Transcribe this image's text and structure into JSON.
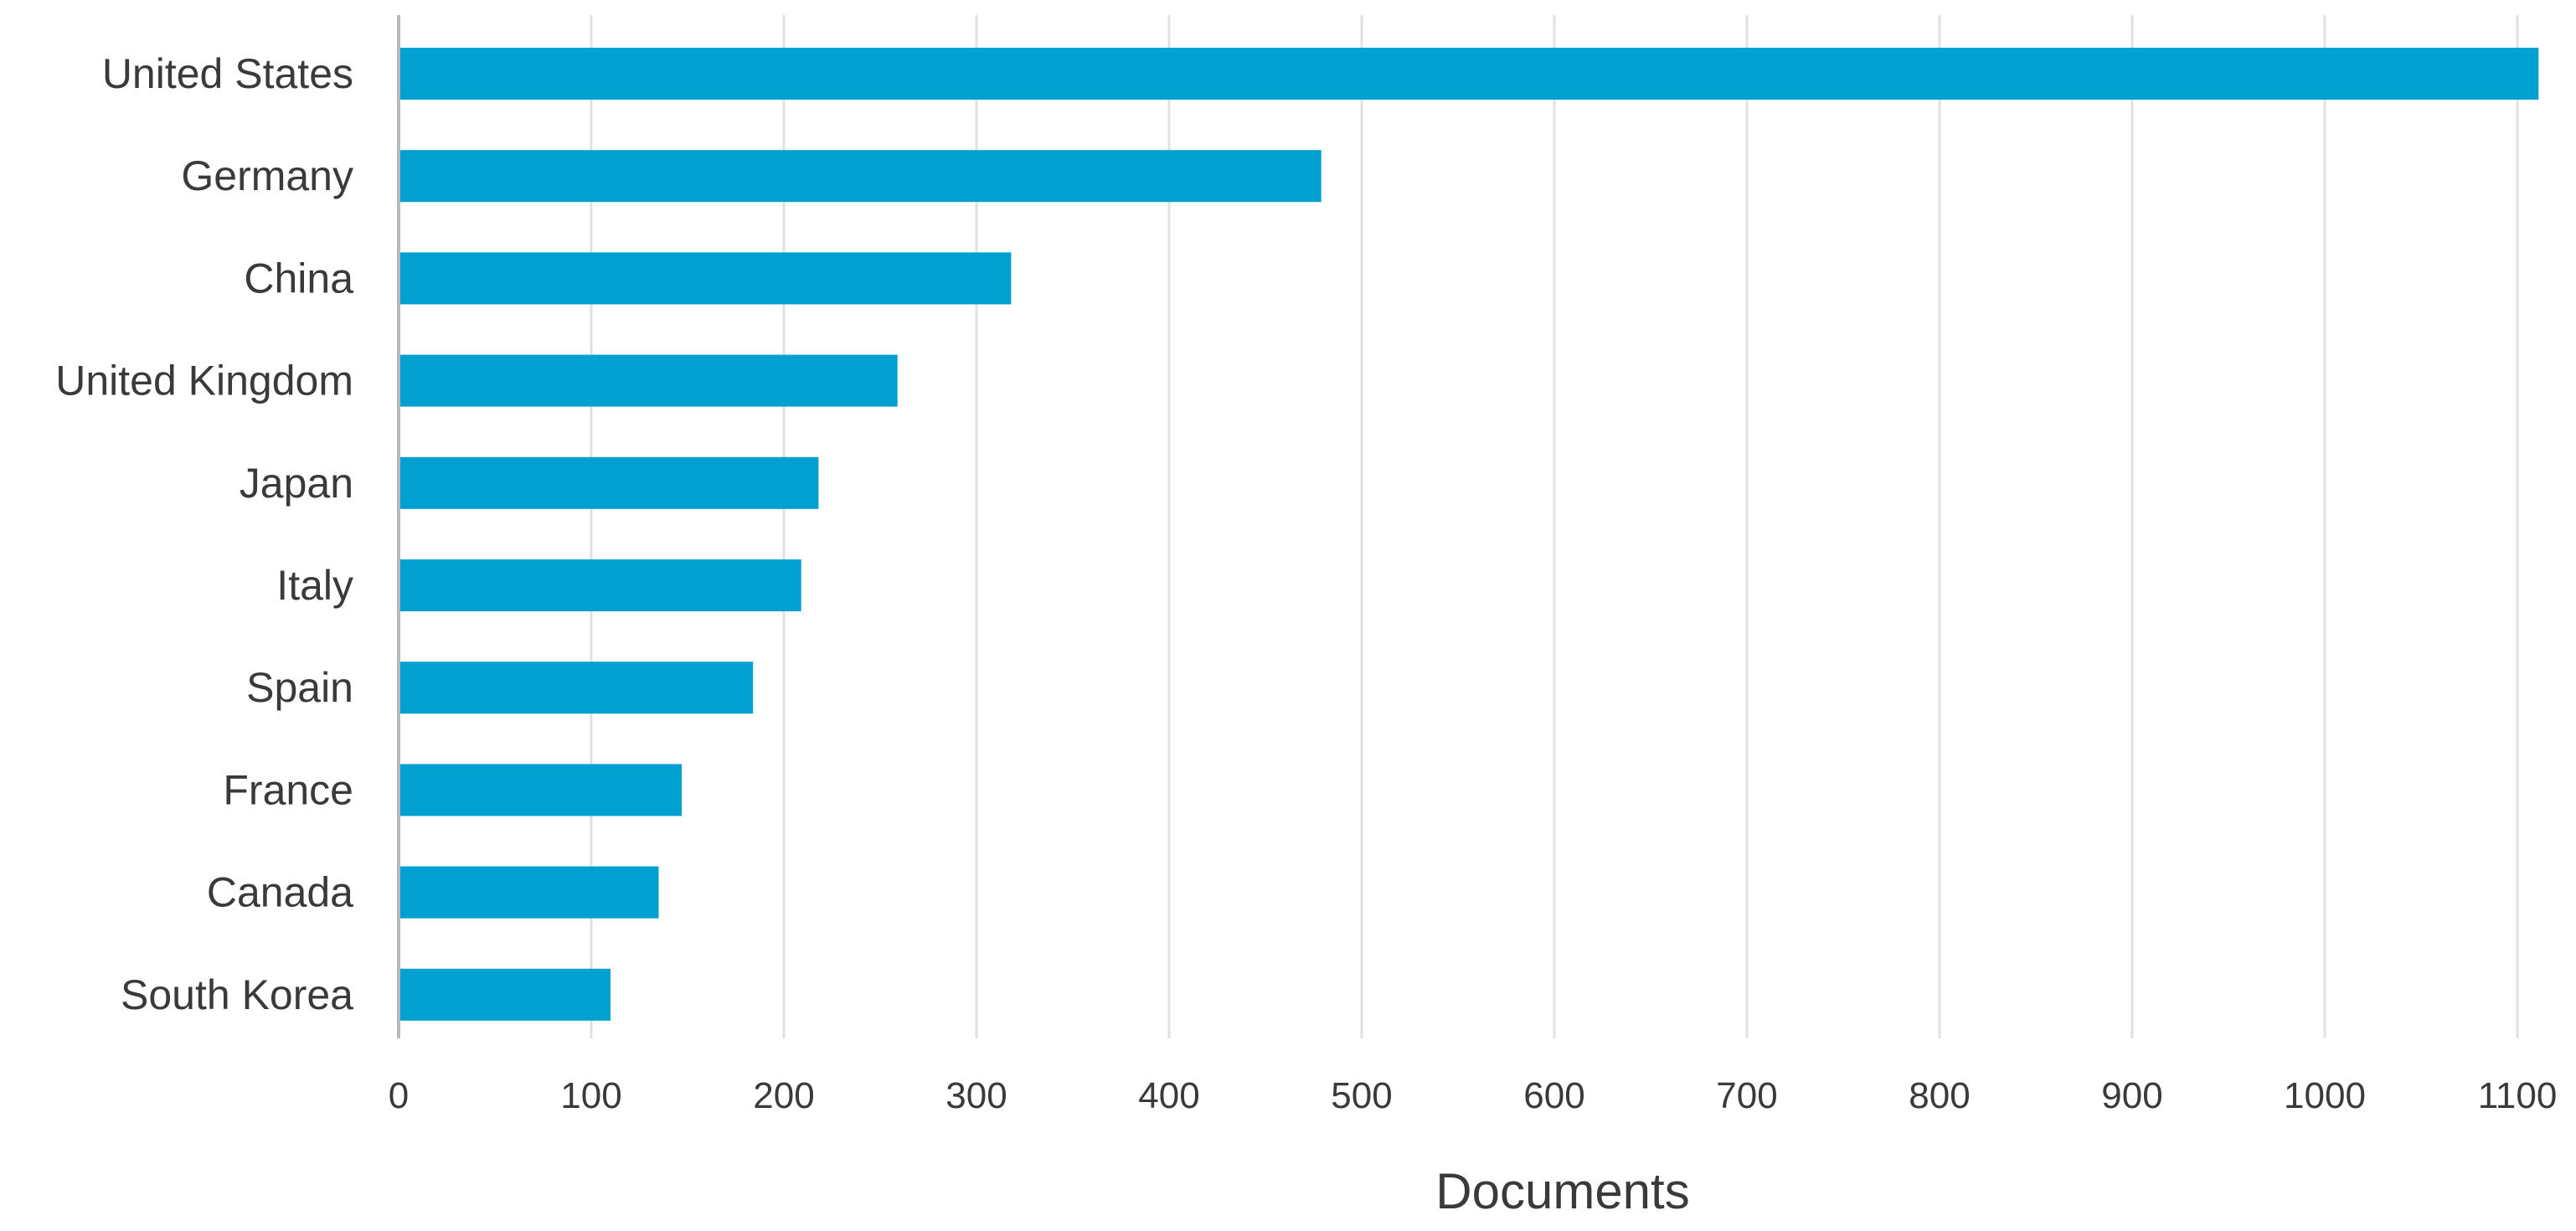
{
  "chart_data": {
    "type": "bar",
    "orientation": "horizontal",
    "categories": [
      "United States",
      "Germany",
      "China",
      "United Kingdom",
      "Japan",
      "Italy",
      "Spain",
      "France",
      "Canada",
      "South Korea"
    ],
    "values": [
      1111,
      479,
      318,
      259,
      218,
      209,
      184,
      147,
      135,
      110
    ],
    "xlabel": "Documents",
    "ylabel": "",
    "xlim": [
      0,
      1100
    ],
    "xticks": [
      "0",
      "100",
      "200",
      "300",
      "400",
      "500",
      "600",
      "700",
      "800",
      "900",
      "1000",
      "1100"
    ],
    "grid": "vertical",
    "colors": {
      "bar": "#00a0d0",
      "grid": "#e1e1e1",
      "axis": "#b8b8b8",
      "text": "#3a3a3a"
    }
  }
}
